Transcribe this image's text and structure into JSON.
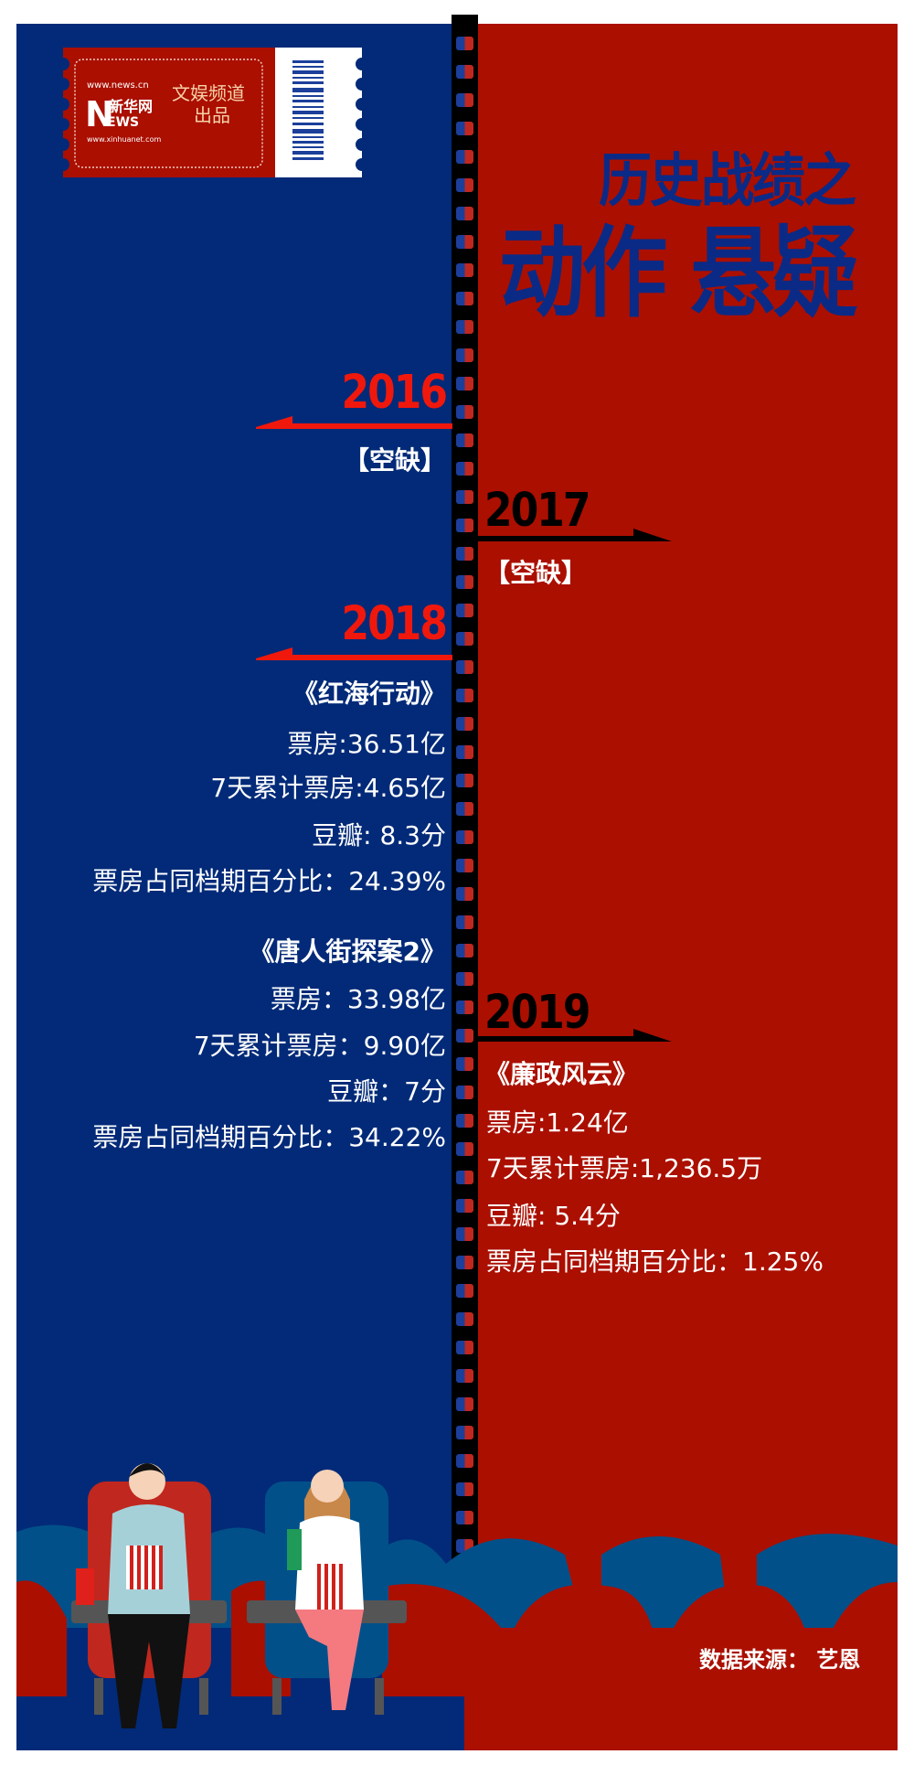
{
  "ticket": {
    "logo_text": [
      "www.news.cn",
      "新华网",
      "NEWS",
      "www.xinhuanet.com"
    ],
    "channel": "文娱频道",
    "produced": "出品"
  },
  "header": {
    "title_line1": "历史战绩之",
    "title_line2": "动作 悬疑"
  },
  "timeline": {
    "y2016": {
      "year": "2016",
      "note": "【空缺】"
    },
    "y2017": {
      "year": "2017",
      "note": "【空缺】"
    },
    "y2018": {
      "year": "2018",
      "films": [
        {
          "title": "《红海行动》",
          "box_office": "票房:36.51亿",
          "seven_day": "7天累计票房:4.65亿",
          "douban": "豆瓣: 8.3分",
          "share": "票房占同档期百分比：24.39%"
        },
        {
          "title": "《唐人街探案2》",
          "box_office": "票房：33.98亿",
          "seven_day": "7天累计票房：9.90亿",
          "douban": "豆瓣：7分",
          "share": "票房占同档期百分比：34.22%"
        }
      ]
    },
    "y2019": {
      "year": "2019",
      "films": [
        {
          "title": "《廉政风云》",
          "box_office": "票房:1.24亿",
          "seven_day": "7天累计票房:1,236.5万",
          "douban": "豆瓣: 5.4分",
          "share": "票房占同档期百分比：1.25%"
        }
      ]
    }
  },
  "footer": {
    "source": "数据来源： 艺恩"
  },
  "colors": {
    "blue": "#022a78",
    "red": "#ab0f00",
    "accent_red": "#f0180c",
    "title_blue": "#0b2a86"
  }
}
